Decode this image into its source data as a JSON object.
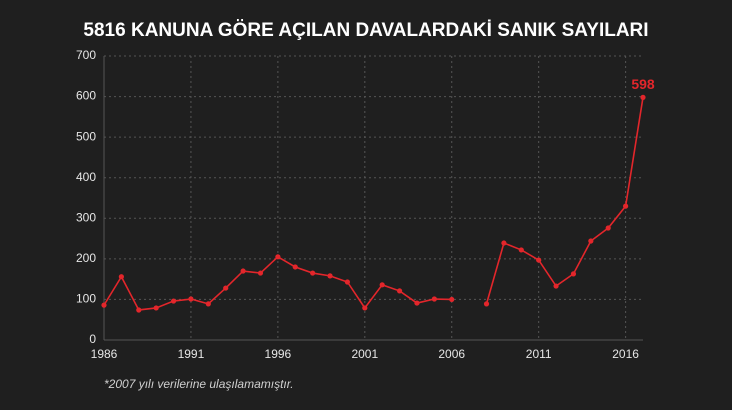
{
  "chart_data": {
    "type": "line",
    "title": "5816 KANUNA GÖRE AÇILAN DAVALARDAKİ SANIK SAYILARI",
    "x": [
      1986,
      1987,
      1988,
      1989,
      1990,
      1991,
      1992,
      1993,
      1994,
      1995,
      1996,
      1997,
      1998,
      1999,
      2000,
      2001,
      2002,
      2003,
      2004,
      2005,
      2006,
      2007,
      2008,
      2009,
      2010,
      2011,
      2012,
      2013,
      2014,
      2015,
      2016,
      2017
    ],
    "values": [
      86,
      156,
      74,
      79,
      96,
      101,
      89,
      128,
      170,
      165,
      205,
      180,
      165,
      158,
      143,
      79,
      136,
      121,
      91,
      101,
      100,
      null,
      89,
      239,
      222,
      197,
      133,
      163,
      244,
      276,
      330,
      598
    ],
    "color": "#e3262b",
    "xlim": [
      1986,
      2017
    ],
    "xticks": [
      1986,
      1991,
      1996,
      2001,
      2006,
      2011,
      2016
    ],
    "ylim": [
      0,
      700
    ],
    "yticks": [
      0,
      100,
      200,
      300,
      400,
      500,
      600,
      700
    ],
    "grid": true,
    "end_label": true,
    "footnote": "*2007 yılı verilerine ulaşılamamıştır."
  }
}
